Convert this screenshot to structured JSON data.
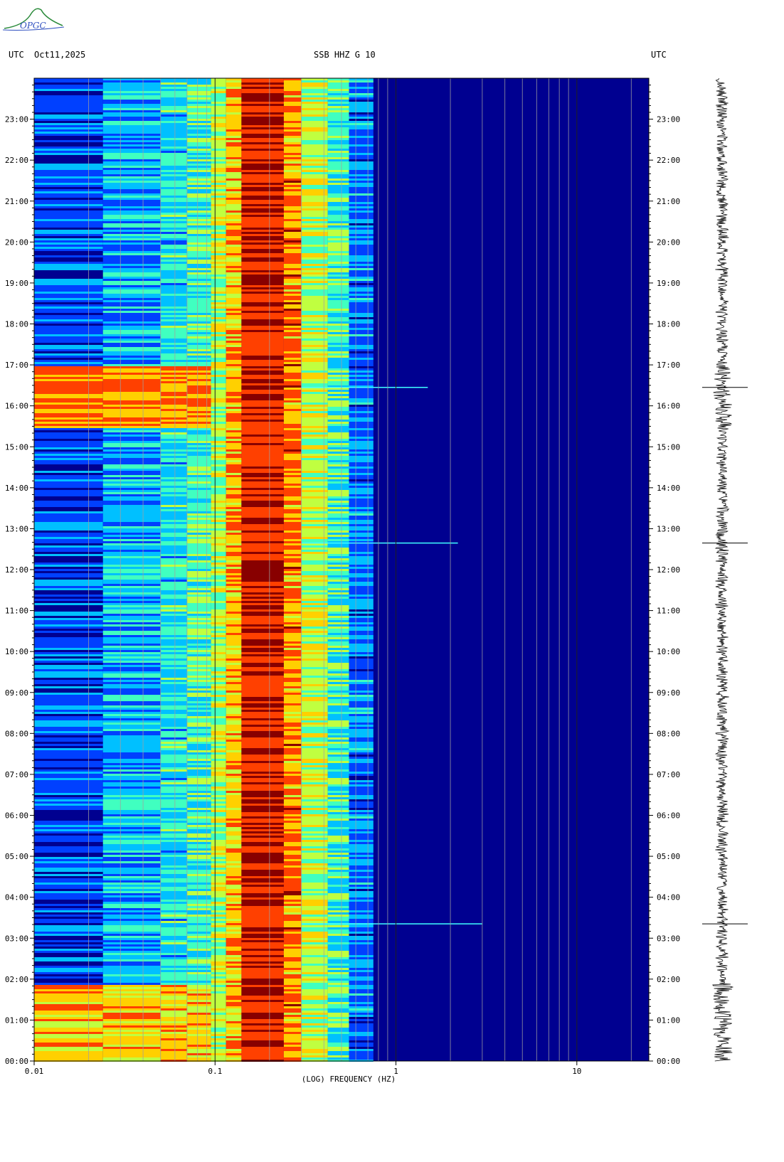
{
  "header": {
    "left_tz": "UTC",
    "date": "Oct11,2025",
    "station": "SSB HHZ G 10",
    "right_tz": "UTC",
    "logo_text": "OPGC"
  },
  "chart_data": {
    "type": "heatmap",
    "title": "SSB HHZ G 10",
    "xlabel": "(LOG) FREQUENCY (HZ)",
    "ylabel": "UTC",
    "x_scale": "log",
    "xlim": [
      0.01,
      25
    ],
    "ylim_hours": [
      0,
      24
    ],
    "x_tick_labels": [
      "0.01",
      "0.1",
      "1",
      "10"
    ],
    "x_tick_values": [
      0.01,
      0.1,
      1,
      10
    ],
    "y_tick_labels": [
      "00:00",
      "01:00",
      "02:00",
      "03:00",
      "04:00",
      "05:00",
      "06:00",
      "07:00",
      "08:00",
      "09:00",
      "10:00",
      "11:00",
      "12:00",
      "13:00",
      "14:00",
      "15:00",
      "16:00",
      "17:00",
      "18:00",
      "19:00",
      "20:00",
      "21:00",
      "22:00",
      "23:00"
    ],
    "colormap": [
      "#000090",
      "#0040ff",
      "#00c0ff",
      "#40ffc0",
      "#c0ff40",
      "#ffd000",
      "#ff4000",
      "#880000"
    ],
    "grid_frequencies": [
      0.02,
      0.03,
      0.04,
      0.05,
      0.06,
      0.07,
      0.08,
      0.09,
      0.2,
      0.3,
      0.4,
      0.5,
      0.6,
      0.7,
      0.8,
      0.9,
      2,
      3,
      4,
      5,
      6,
      7,
      8,
      9,
      20
    ],
    "bands": [
      {
        "f_min": 0.01,
        "f_max": 0.024,
        "level": 1
      },
      {
        "f_min": 0.024,
        "f_max": 0.05,
        "level": 2
      },
      {
        "f_min": 0.05,
        "f_max": 0.07,
        "level": 2.5
      },
      {
        "f_min": 0.07,
        "f_max": 0.095,
        "level": 3
      },
      {
        "f_min": 0.095,
        "f_max": 0.115,
        "level": 4
      },
      {
        "f_min": 0.115,
        "f_max": 0.14,
        "level": 5
      },
      {
        "f_min": 0.14,
        "f_max": 0.24,
        "level": 7
      },
      {
        "f_min": 0.24,
        "f_max": 0.3,
        "level": 5.5
      },
      {
        "f_min": 0.3,
        "f_max": 0.42,
        "level": 4
      },
      {
        "f_min": 0.42,
        "f_max": 0.55,
        "level": 3
      },
      {
        "f_min": 0.55,
        "f_max": 0.75,
        "level": 1.5
      },
      {
        "f_min": 0.75,
        "f_max": 25,
        "level": 0
      }
    ],
    "events_hours": [
      {
        "hour": 16.45,
        "f_max": 1.5
      },
      {
        "hour": 12.65,
        "f_max": 2.2
      },
      {
        "hour": 3.35,
        "f_max": 3.0
      }
    ],
    "quiet_then_active": [
      {
        "from_hour": 0,
        "to_hour": 1.9,
        "low_freq_level": 6
      },
      {
        "from_hour": 15.5,
        "to_hour": 17.0,
        "low_freq_level": 6.5
      }
    ]
  }
}
